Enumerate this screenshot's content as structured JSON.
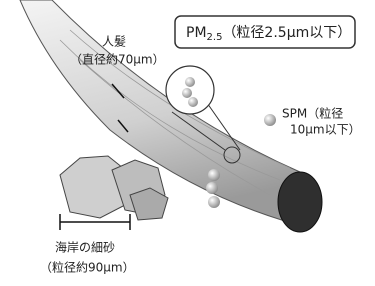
{
  "hair": {
    "name": "人髪",
    "size": "（直径約70μm）"
  },
  "pm25": {
    "prefix": "PM",
    "sub": "2.5",
    "detail": "（粒径2.5μm以下）"
  },
  "spm": {
    "line1": "SPM（粒径",
    "line2": "10μm以下）"
  },
  "sand": {
    "name": "海岸の細砂",
    "size": "（粒径約90μm）"
  }
}
